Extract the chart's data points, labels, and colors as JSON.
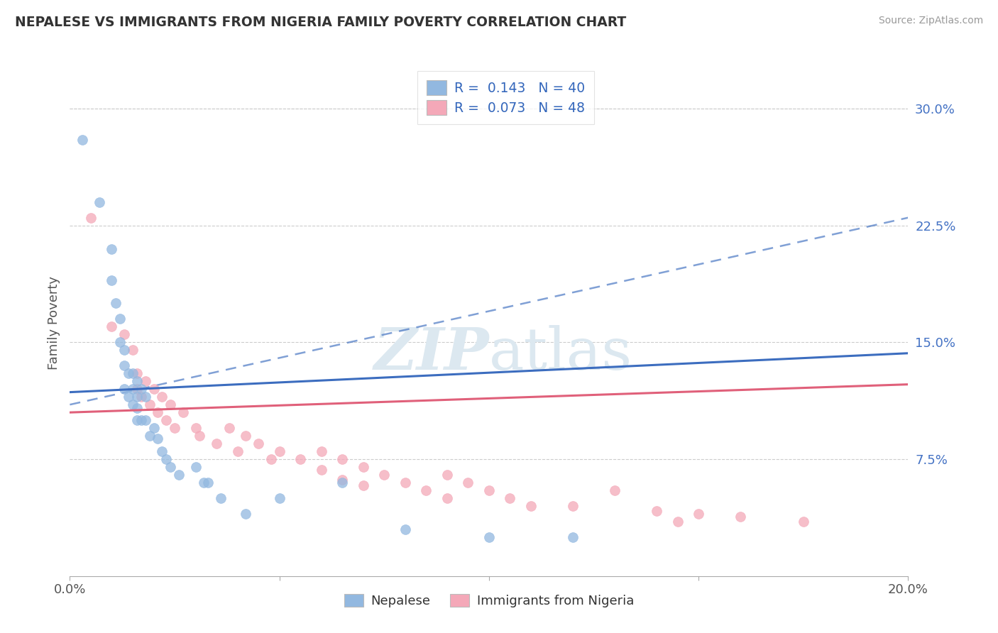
{
  "title": "NEPALESE VS IMMIGRANTS FROM NIGERIA FAMILY POVERTY CORRELATION CHART",
  "source_text": "Source: ZipAtlas.com",
  "ylabel": "Family Poverty",
  "xlim": [
    0.0,
    0.2
  ],
  "ylim": [
    0.0,
    0.32
  ],
  "yticks": [
    0.075,
    0.15,
    0.225,
    0.3
  ],
  "ytick_labels": [
    "7.5%",
    "15.0%",
    "22.5%",
    "30.0%"
  ],
  "xticks": [
    0.0,
    0.05,
    0.1,
    0.15,
    0.2
  ],
  "xtick_labels": [
    "0.0%",
    "",
    "",
    "",
    "20.0%"
  ],
  "nepalese_R": 0.143,
  "nepalese_N": 40,
  "nigeria_R": 0.073,
  "nigeria_N": 48,
  "nepalese_color": "#92b8e0",
  "nigeria_color": "#f4a8b8",
  "nepalese_line_color": "#3c6dbf",
  "nigeria_line_color": "#e0607a",
  "grid_color": "#cccccc",
  "watermark_color": "#dce8f0",
  "nepalese_x": [
    0.003,
    0.007,
    0.01,
    0.01,
    0.011,
    0.012,
    0.012,
    0.013,
    0.013,
    0.013,
    0.014,
    0.014,
    0.015,
    0.015,
    0.015,
    0.016,
    0.016,
    0.016,
    0.016,
    0.017,
    0.017,
    0.018,
    0.018,
    0.019,
    0.02,
    0.021,
    0.022,
    0.023,
    0.024,
    0.026,
    0.03,
    0.032,
    0.033,
    0.036,
    0.042,
    0.05,
    0.065,
    0.08,
    0.1,
    0.12
  ],
  "nepalese_y": [
    0.28,
    0.24,
    0.21,
    0.19,
    0.175,
    0.165,
    0.15,
    0.145,
    0.135,
    0.12,
    0.13,
    0.115,
    0.13,
    0.12,
    0.11,
    0.125,
    0.115,
    0.108,
    0.1,
    0.12,
    0.1,
    0.115,
    0.1,
    0.09,
    0.095,
    0.088,
    0.08,
    0.075,
    0.07,
    0.065,
    0.07,
    0.06,
    0.06,
    0.05,
    0.04,
    0.05,
    0.06,
    0.03,
    0.025,
    0.025
  ],
  "nigeria_x": [
    0.005,
    0.01,
    0.013,
    0.015,
    0.016,
    0.016,
    0.017,
    0.018,
    0.019,
    0.02,
    0.021,
    0.022,
    0.023,
    0.024,
    0.025,
    0.027,
    0.03,
    0.031,
    0.035,
    0.038,
    0.04,
    0.042,
    0.045,
    0.048,
    0.05,
    0.055,
    0.06,
    0.06,
    0.065,
    0.065,
    0.07,
    0.07,
    0.075,
    0.08,
    0.085,
    0.09,
    0.09,
    0.095,
    0.1,
    0.105,
    0.11,
    0.12,
    0.13,
    0.14,
    0.145,
    0.15,
    0.16,
    0.175
  ],
  "nigeria_y": [
    0.23,
    0.16,
    0.155,
    0.145,
    0.13,
    0.12,
    0.115,
    0.125,
    0.11,
    0.12,
    0.105,
    0.115,
    0.1,
    0.11,
    0.095,
    0.105,
    0.095,
    0.09,
    0.085,
    0.095,
    0.08,
    0.09,
    0.085,
    0.075,
    0.08,
    0.075,
    0.08,
    0.068,
    0.075,
    0.062,
    0.07,
    0.058,
    0.065,
    0.06,
    0.055,
    0.065,
    0.05,
    0.06,
    0.055,
    0.05,
    0.045,
    0.045,
    0.055,
    0.042,
    0.035,
    0.04,
    0.038,
    0.035
  ],
  "nepalese_trend": [
    0.118,
    0.143
  ],
  "nigeria_trend": [
    0.105,
    0.123
  ],
  "dashed_line": [
    0.11,
    0.23
  ]
}
